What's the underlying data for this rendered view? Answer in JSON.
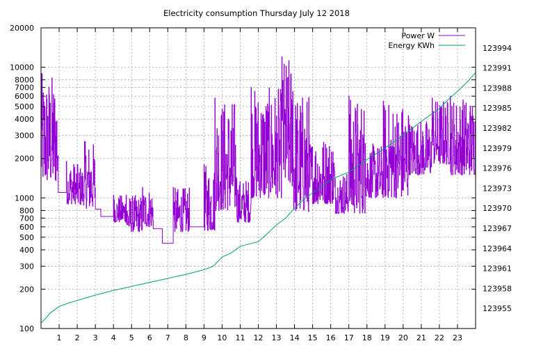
{
  "chart_data": {
    "type": "line",
    "title": "Electricity consumption Thursday July 12 2018",
    "xlim": [
      0,
      24
    ],
    "x_ticks": [
      "1",
      "2",
      "3",
      "4",
      "5",
      "6",
      "7",
      "8",
      "9",
      "10",
      "11",
      "12",
      "13",
      "14",
      "15",
      "16",
      "17",
      "18",
      "19",
      "20",
      "21",
      "22",
      "23"
    ],
    "y_axis": {
      "scale": "log",
      "range": [
        100,
        20000
      ],
      "tick_values": [
        100,
        200,
        300,
        400,
        500,
        600,
        700,
        800,
        1000,
        2000,
        3000,
        4000,
        5000,
        6000,
        7000,
        8000,
        10000,
        20000
      ],
      "tick_labels": [
        "100",
        "200",
        "300",
        "400",
        "500",
        "600",
        "700",
        "800",
        "1000",
        "2000",
        "3000",
        "4000",
        "5000",
        "6000",
        "7000",
        "8000",
        "10000",
        "20000"
      ]
    },
    "y2_axis": {
      "scale": "linear",
      "range": [
        123952,
        123997
      ],
      "tick_values": [
        123955,
        123958,
        123961,
        123964,
        123967,
        123970,
        123973,
        123976,
        123979,
        123982,
        123985,
        123988,
        123991,
        123994
      ],
      "tick_labels": [
        "123955",
        "123958",
        "123961",
        "123964",
        "123967",
        "123970",
        "123973",
        "123976",
        "123979",
        "123982",
        "123985",
        "123988",
        "123991",
        "123994"
      ]
    },
    "grid": true,
    "legend_position": "top-right",
    "series": [
      {
        "name": "Power W",
        "color": "#9400d3",
        "axis": "y",
        "segments": [
          {
            "from": 0.0,
            "to": 0.95,
            "low": 1300,
            "high": 9000
          },
          {
            "from": 0.95,
            "to": 1.4,
            "low": 1100,
            "high": 1150
          },
          {
            "from": 1.4,
            "to": 2.0,
            "low": 900,
            "high": 1900
          },
          {
            "from": 2.0,
            "to": 2.4,
            "low": 880,
            "high": 1800
          },
          {
            "from": 2.4,
            "to": 3.0,
            "low": 830,
            "high": 2700
          },
          {
            "from": 3.0,
            "to": 3.3,
            "low": 820,
            "high": 820
          },
          {
            "from": 3.3,
            "to": 4.0,
            "low": 720,
            "high": 720
          },
          {
            "from": 4.0,
            "to": 4.7,
            "low": 650,
            "high": 1050
          },
          {
            "from": 4.7,
            "to": 5.6,
            "low": 550,
            "high": 1050
          },
          {
            "from": 5.6,
            "to": 6.2,
            "low": 600,
            "high": 1200
          },
          {
            "from": 6.2,
            "to": 6.7,
            "low": 580,
            "high": 620
          },
          {
            "from": 6.7,
            "to": 7.3,
            "low": 450,
            "high": 450
          },
          {
            "from": 7.3,
            "to": 8.2,
            "low": 550,
            "high": 1200
          },
          {
            "from": 8.2,
            "to": 9.0,
            "low": 600,
            "high": 600
          },
          {
            "from": 9.0,
            "to": 9.6,
            "low": 560,
            "high": 1800
          },
          {
            "from": 9.6,
            "to": 10.8,
            "low": 800,
            "high": 5800
          },
          {
            "from": 10.8,
            "to": 11.6,
            "low": 650,
            "high": 1400
          },
          {
            "from": 11.6,
            "to": 13.3,
            "low": 1000,
            "high": 7000
          },
          {
            "from": 13.3,
            "to": 13.9,
            "low": 1200,
            "high": 12000
          },
          {
            "from": 13.9,
            "to": 14.8,
            "low": 780,
            "high": 6500
          },
          {
            "from": 14.8,
            "to": 16.2,
            "low": 900,
            "high": 3000
          },
          {
            "from": 16.2,
            "to": 17.0,
            "low": 760,
            "high": 1600
          },
          {
            "from": 17.0,
            "to": 17.9,
            "low": 760,
            "high": 6000
          },
          {
            "from": 17.9,
            "to": 18.9,
            "low": 1000,
            "high": 2600
          },
          {
            "from": 18.9,
            "to": 20.3,
            "low": 1000,
            "high": 5500
          },
          {
            "from": 20.3,
            "to": 21.6,
            "low": 1500,
            "high": 4000
          },
          {
            "from": 21.6,
            "to": 22.6,
            "low": 1800,
            "high": 5800
          },
          {
            "from": 22.6,
            "to": 24.0,
            "low": 1500,
            "high": 6000
          }
        ]
      },
      {
        "name": "Energy KWh",
        "color": "#009e73",
        "axis": "y2",
        "x": [
          0,
          0.25,
          0.5,
          1,
          1.5,
          2,
          3,
          4,
          5,
          6,
          7,
          8,
          9,
          9.5,
          10,
          10.5,
          11,
          12,
          12.5,
          13,
          13.5,
          14,
          14.5,
          15,
          15.5,
          16,
          17,
          18,
          19,
          20,
          21,
          22,
          22.5,
          23,
          23.5,
          24
        ],
        "values": [
          123952.8,
          123953.5,
          123954.3,
          123955.3,
          123955.8,
          123956.2,
          123957.0,
          123957.7,
          123958.3,
          123958.9,
          123959.5,
          123960.1,
          123960.8,
          123961.3,
          123962.7,
          123963.3,
          123964.3,
          123965.0,
          123966.2,
          123967.5,
          123968.5,
          123970.0,
          123971.3,
          123972.3,
          123973.2,
          123974.3,
          123975.4,
          123977.3,
          123979.0,
          123980.9,
          123983.0,
          123984.9,
          123986.3,
          123987.5,
          123988.8,
          123990.3
        ]
      }
    ]
  }
}
